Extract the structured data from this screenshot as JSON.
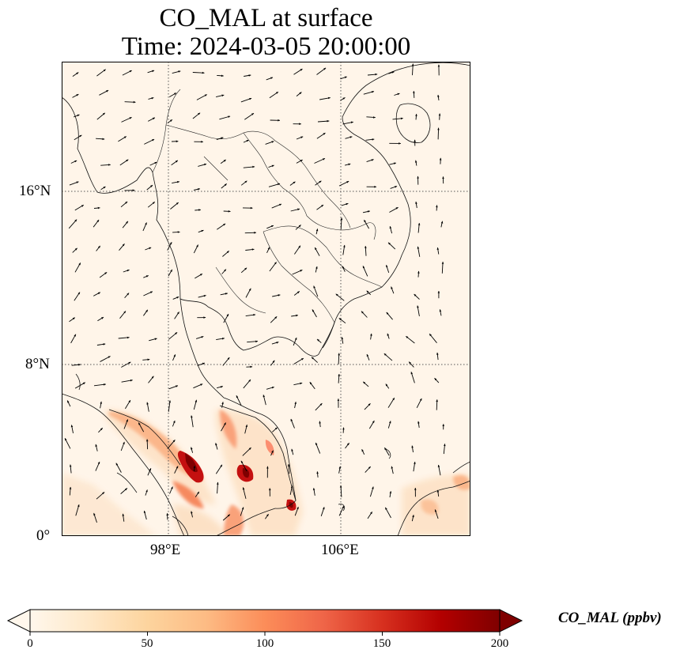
{
  "title": {
    "line1": "CO_MAL at surface",
    "line2": "Time: 2024-03-05 20:00:00"
  },
  "axes": {
    "lat_ticks": [
      "16°N",
      "8°N",
      "0°"
    ],
    "lon_ticks": [
      "98°E",
      "106°E"
    ]
  },
  "colorbar": {
    "label": "CO_MAL (ppbv)",
    "ticks": [
      "0",
      "50",
      "100",
      "150",
      "200"
    ],
    "min": 0,
    "max": 200,
    "colormap": "OrRd",
    "extend": "both"
  },
  "colors": {
    "background_field": "#fff5e9",
    "low": "#fde0c0",
    "mid": "#f4885a",
    "high": "#c61010",
    "peak": "#7f0000"
  }
}
